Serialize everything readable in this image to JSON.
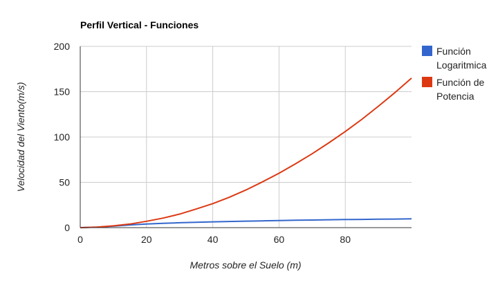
{
  "chart_data": {
    "type": "line",
    "title": "Perfil Vertical - Funciones",
    "xlabel": "Metros sobre el Suelo (m)",
    "ylabel": "Velocidad del Viento(m/s)",
    "xlim": [
      0,
      100
    ],
    "ylim": [
      0,
      200
    ],
    "x_ticks": [
      "0",
      "20",
      "40",
      "60",
      "80"
    ],
    "y_ticks": [
      "0",
      "50",
      "100",
      "150",
      "200"
    ],
    "grid": true,
    "legend_position": "right",
    "x": [
      0,
      5,
      10,
      15,
      20,
      25,
      30,
      35,
      40,
      45,
      50,
      55,
      60,
      65,
      70,
      75,
      80,
      85,
      90,
      95,
      100
    ],
    "series": [
      {
        "name": [
          "Función",
          "Logaritmica"
        ],
        "color": "#3366cc",
        "values": [
          0,
          0.5,
          1.6,
          3.0,
          4.0,
          4.7,
          5.4,
          5.9,
          6.4,
          6.8,
          7.2,
          7.5,
          7.9,
          8.2,
          8.4,
          8.7,
          8.9,
          9.1,
          9.3,
          9.5,
          9.7
        ]
      },
      {
        "name": [
          "Función de",
          "Potencia"
        ],
        "color": "#dc3912",
        "values": [
          0,
          0.5,
          2.0,
          4.0,
          7.0,
          10.5,
          15.0,
          20.5,
          26.5,
          33.5,
          41.5,
          50.5,
          60.0,
          70.5,
          81.5,
          93.5,
          106.0,
          119.5,
          134.0,
          149.0,
          165.0
        ]
      }
    ]
  }
}
